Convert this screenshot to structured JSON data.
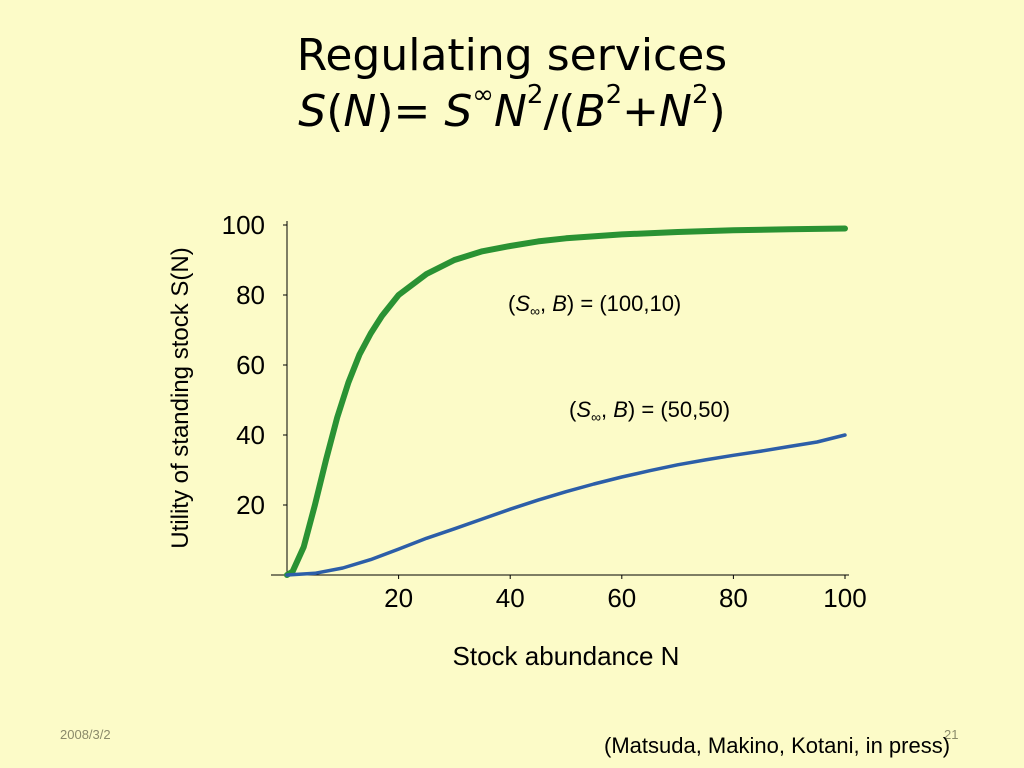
{
  "slide": {
    "title_line1": "Regulating services",
    "formula": {
      "S": "S",
      "open1": "(",
      "N": "N",
      "close_eq": ")= ",
      "S2": "S",
      "inf": "∞",
      "N2": "N",
      "sq": "2",
      "mid": "/(",
      "B": "B",
      "sq2": "2",
      "plus": "+",
      "N3": "N",
      "sq3": "2",
      "end": ")"
    },
    "footer_date": "2008/3/2",
    "page_number": "21",
    "citation": "(Matsuda, Makino, Kotani, in press)"
  },
  "colors": {
    "background": "#fcfbc8",
    "series_green": "#2a9233",
    "series_blue": "#2c5ea8",
    "axis": "#000000"
  },
  "chart_data": {
    "type": "line",
    "xlabel": "Stock abundance N",
    "ylabel": "Utility of standing stock S(N)",
    "xlim": [
      0,
      100
    ],
    "ylim": [
      0,
      100
    ],
    "x_ticks": [
      "20",
      "40",
      "60",
      "80",
      "100"
    ],
    "y_ticks": [
      "20",
      "40",
      "60",
      "80",
      "100"
    ],
    "grid": false,
    "series": [
      {
        "name": "(S∞, B) = (100,10)",
        "color": "#2a9233",
        "x": [
          0,
          1,
          3,
          5,
          7,
          9,
          11,
          13,
          15,
          17,
          20,
          25,
          30,
          35,
          40,
          45,
          50,
          60,
          70,
          80,
          90,
          100
        ],
        "y": [
          0,
          1,
          8,
          20,
          33,
          45,
          55,
          63,
          69,
          74,
          80,
          86,
          90,
          92.5,
          94,
          95.3,
          96.2,
          97.3,
          98,
          98.5,
          98.8,
          99
        ]
      },
      {
        "name": "(S∞, B) = (50,50)",
        "color": "#2c5ea8",
        "x": [
          0,
          5,
          10,
          15,
          20,
          25,
          30,
          35,
          40,
          45,
          50,
          55,
          60,
          65,
          70,
          75,
          80,
          85,
          90,
          95,
          100
        ],
        "y": [
          0,
          0.5,
          2,
          4.4,
          7.4,
          10.5,
          13.2,
          16,
          18.8,
          21.4,
          23.8,
          26,
          28,
          29.8,
          31.5,
          32.9,
          34.2,
          35.4,
          36.7,
          38,
          40
        ]
      }
    ],
    "annotations": [
      {
        "open": "(",
        "S": "S",
        "sub": "∞",
        "comma": ", ",
        "B": "B",
        "rest": ") = (100,10)"
      },
      {
        "open": "(",
        "S": "S",
        "sub": "∞",
        "comma": ", ",
        "B": "B",
        "rest": ") = (50,50)"
      }
    ]
  }
}
